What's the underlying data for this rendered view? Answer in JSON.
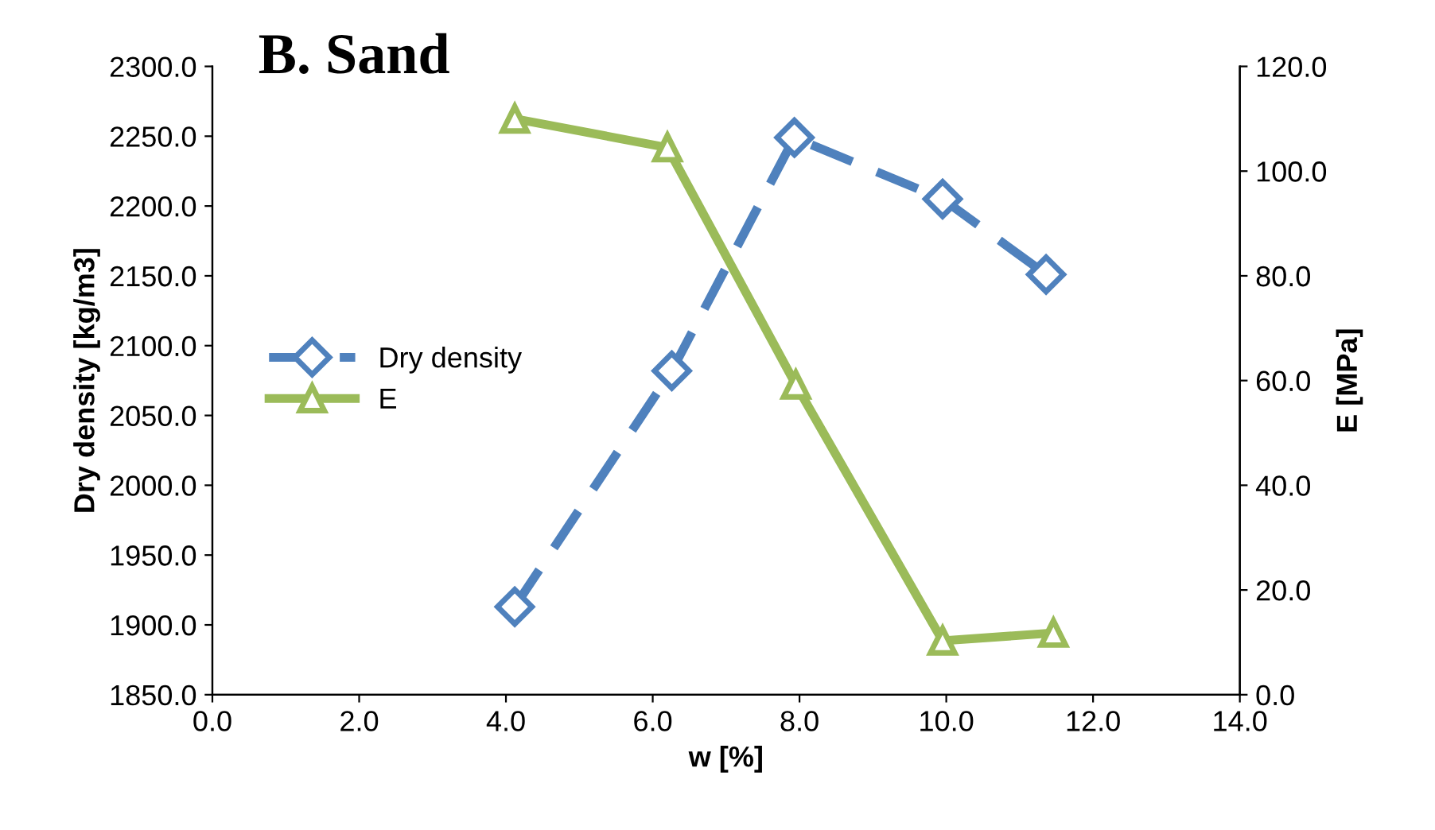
{
  "chart_data": {
    "type": "line",
    "title": "B. Sand",
    "xlabel": "w [%]",
    "ylabel": "Dry density [kg/m3]",
    "y2label": "E [MPa]",
    "xlim": [
      0,
      14
    ],
    "xticks": [
      {
        "value": 0,
        "label": "0.0"
      },
      {
        "value": 2,
        "label": "2.0"
      },
      {
        "value": 4,
        "label": "4.0"
      },
      {
        "value": 6,
        "label": "6.0"
      },
      {
        "value": 8,
        "label": "8.0"
      },
      {
        "value": 10,
        "label": "10.0"
      },
      {
        "value": 12,
        "label": "12.0"
      },
      {
        "value": 14,
        "label": "14.0"
      }
    ],
    "ylim": [
      1850,
      2300
    ],
    "yticks": [
      {
        "value": 1850,
        "label": "1850.0"
      },
      {
        "value": 1900,
        "label": "1900.0"
      },
      {
        "value": 1950,
        "label": "1950.0"
      },
      {
        "value": 2000,
        "label": "2000.0"
      },
      {
        "value": 2050,
        "label": "2050.0"
      },
      {
        "value": 2100,
        "label": "2100.0"
      },
      {
        "value": 2150,
        "label": "2150.0"
      },
      {
        "value": 2200,
        "label": "2200.0"
      },
      {
        "value": 2250,
        "label": "2250.0"
      },
      {
        "value": 2300,
        "label": "2300.0"
      }
    ],
    "y2lim": [
      0,
      120
    ],
    "y2ticks": [
      {
        "value": 0,
        "label": "0.0"
      },
      {
        "value": 20,
        "label": "20.0"
      },
      {
        "value": 40,
        "label": "40.0"
      },
      {
        "value": 60,
        "label": "60.0"
      },
      {
        "value": 80,
        "label": "80.0"
      },
      {
        "value": 100,
        "label": "100.0"
      },
      {
        "value": 120,
        "label": "120.0"
      }
    ],
    "grid": false,
    "legend": "left",
    "series": [
      {
        "name": "Dry density",
        "color": "#4f81bd",
        "marker": "diamond",
        "line_style": "dashed",
        "x": [
          4.12,
          6.26,
          7.93,
          9.95,
          11.36
        ],
        "values": [
          1913,
          2082,
          2249,
          2205,
          2151
        ]
      },
      {
        "name": "E",
        "color": "#9bbb59",
        "marker": "triangle",
        "line_style": "solid",
        "axis": "y2",
        "x": [
          4.12,
          6.2,
          7.95,
          9.95,
          11.46
        ],
        "values": [
          110,
          104.5,
          59.2,
          10.3,
          11.8
        ]
      }
    ]
  }
}
